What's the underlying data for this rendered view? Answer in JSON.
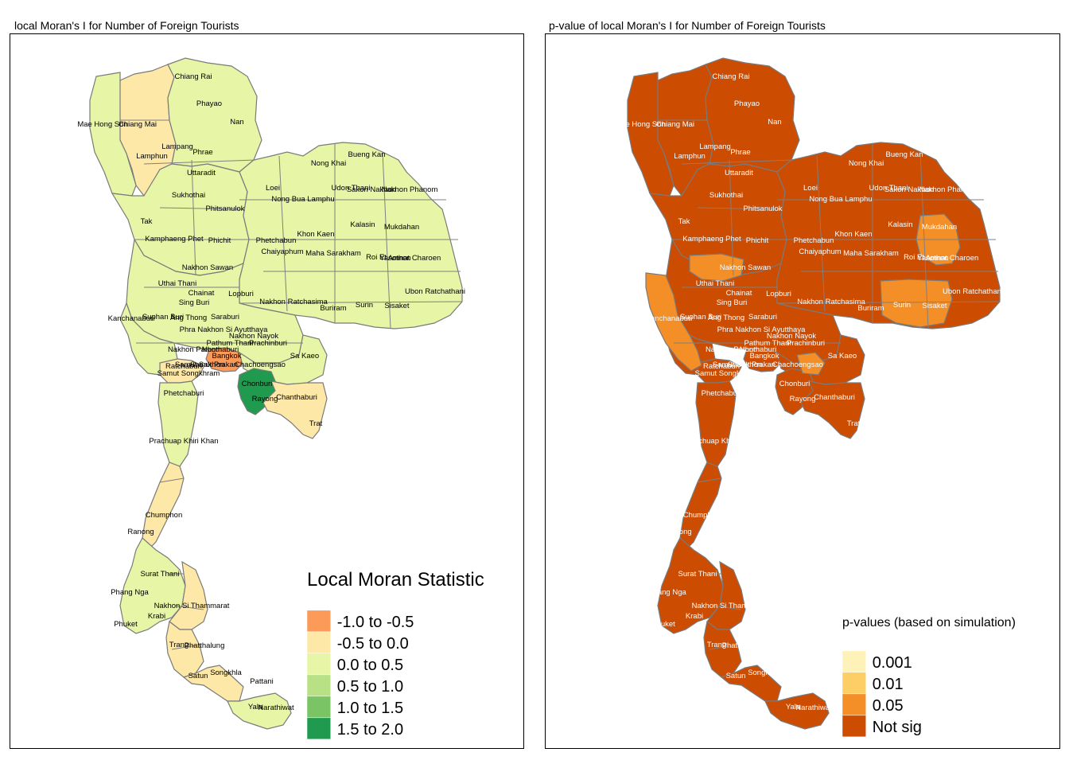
{
  "left_panel": {
    "title": "local Moran's I for Number of Foreign Tourists",
    "legend": {
      "title": "Local Moran Statistic",
      "items": [
        {
          "label": "-1.0 to -0.5",
          "color": "#fc9a5a"
        },
        {
          "label": "-0.5 to 0.0",
          "color": "#fee8a8"
        },
        {
          "label": "0.0 to 0.5",
          "color": "#e6f5a6"
        },
        {
          "label": "0.5 to 1.0",
          "color": "#b8e186"
        },
        {
          "label": "1.0 to 1.5",
          "color": "#7bc465"
        },
        {
          "label": "1.5 to 2.0",
          "color": "#1f9a4e"
        }
      ]
    }
  },
  "right_panel": {
    "title": "p-value of local Moran's I for Number of Foreign Tourists",
    "legend": {
      "title": "p-values (based on simulation)",
      "items": [
        {
          "label": "0.001",
          "color": "#fff2b8"
        },
        {
          "label": "0.01",
          "color": "#fdcd66"
        },
        {
          "label": "0.05",
          "color": "#f48e26"
        },
        {
          "label": "Not sig",
          "color": "#cc4c02"
        }
      ]
    }
  },
  "provinces": [
    {
      "name": "Chiang Rai"
    },
    {
      "name": "Phayao"
    },
    {
      "name": "Nan"
    },
    {
      "name": "Mae Hong Son"
    },
    {
      "name": "Chiang Mai"
    },
    {
      "name": "Lampang"
    },
    {
      "name": "Lamphun"
    },
    {
      "name": "Phrae"
    },
    {
      "name": "Uttaradit"
    },
    {
      "name": "Bueng Kan"
    },
    {
      "name": "Nong Khai"
    },
    {
      "name": "Udon Thani"
    },
    {
      "name": "Sakon Nakhon"
    },
    {
      "name": "Nakhon Phanom"
    },
    {
      "name": "Loei"
    },
    {
      "name": "Nong Bua Lamphu"
    },
    {
      "name": "Sukhothai"
    },
    {
      "name": "Phitsanulok"
    },
    {
      "name": "Tak"
    },
    {
      "name": "Kamphaeng Phet"
    },
    {
      "name": "Phichit"
    },
    {
      "name": "Phetchabun"
    },
    {
      "name": "Khon Kaen"
    },
    {
      "name": "Kalasin"
    },
    {
      "name": "Mukdahan"
    },
    {
      "name": "Chaiyaphum"
    },
    {
      "name": "Maha Sarakham"
    },
    {
      "name": "Roi Et"
    },
    {
      "name": "Yasothon"
    },
    {
      "name": "Amnat Charoen"
    },
    {
      "name": "Nakhon Sawan"
    },
    {
      "name": "Uthai Thani"
    },
    {
      "name": "Chainat"
    },
    {
      "name": "Lopburi"
    },
    {
      "name": "Sing Buri"
    },
    {
      "name": "Nakhon Ratchasima"
    },
    {
      "name": "Buriram"
    },
    {
      "name": "Surin"
    },
    {
      "name": "Sisaket"
    },
    {
      "name": "Ubon Ratchathani"
    },
    {
      "name": "Kanchanaburi"
    },
    {
      "name": "Suphan Buri"
    },
    {
      "name": "Ang Thong"
    },
    {
      "name": "Saraburi"
    },
    {
      "name": "Phra Nakhon Si Ayutthaya"
    },
    {
      "name": "Nakhon Nayok"
    },
    {
      "name": "Pathum Thani"
    },
    {
      "name": "Prachinburi"
    },
    {
      "name": "Nakhon Pathom"
    },
    {
      "name": "Nonthaburi"
    },
    {
      "name": "Sa Kaeo"
    },
    {
      "name": "Bangkok"
    },
    {
      "name": "Samut Prakan"
    },
    {
      "name": "Chachoengsao"
    },
    {
      "name": "Ratchaburi"
    },
    {
      "name": "Samut Sakhon"
    },
    {
      "name": "Samut Songkhram"
    },
    {
      "name": "Chonburi"
    },
    {
      "name": "Phetchaburi"
    },
    {
      "name": "Rayong"
    },
    {
      "name": "Chanthaburi"
    },
    {
      "name": "Trat"
    },
    {
      "name": "Prachuap Khiri Khan"
    },
    {
      "name": "Chumphon"
    },
    {
      "name": "Ranong"
    },
    {
      "name": "Surat Thani"
    },
    {
      "name": "Phang Nga"
    },
    {
      "name": "Nakhon Si Thammarat"
    },
    {
      "name": "Krabi"
    },
    {
      "name": "Phuket"
    },
    {
      "name": "Trang"
    },
    {
      "name": "Phatthalung"
    },
    {
      "name": "Satun"
    },
    {
      "name": "Songkhla"
    },
    {
      "name": "Pattani"
    },
    {
      "name": "Yala"
    },
    {
      "name": "Narathiwat"
    }
  ]
}
